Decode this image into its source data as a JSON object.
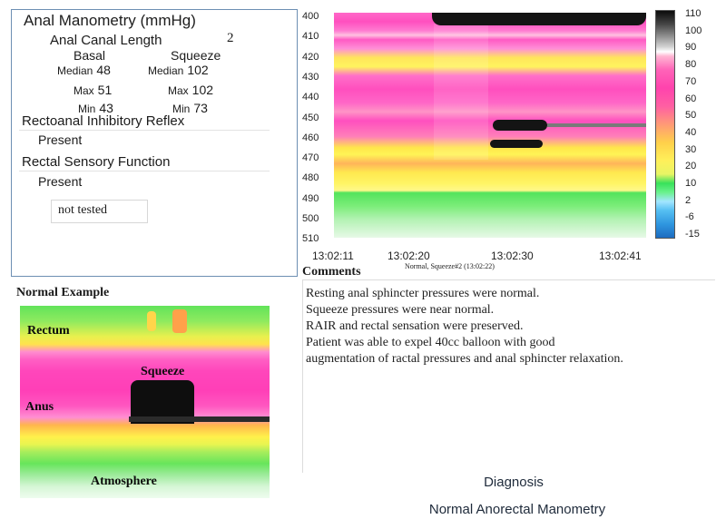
{
  "manometry": {
    "title": "Anal Manometry (mmHg)",
    "canal_length_label": "Anal Canal Length",
    "canal_length_value": "2",
    "basal": {
      "header": "Basal",
      "median_label": "Median",
      "median": "48",
      "max_label": "Max",
      "max": "51",
      "min_label": "Min",
      "min": "43"
    },
    "squeeze": {
      "header": "Squeeze",
      "median_label": "Median",
      "median": "102",
      "max_label": "Max",
      "max": "102",
      "min_label": "Min",
      "min": "73"
    },
    "rair_label": "Rectoanal Inhibitory Reflex",
    "rair_value": "Present",
    "sensory_label": "Rectal Sensory Function",
    "sensory_value": "Present",
    "not_tested": "not tested"
  },
  "chart_data": {
    "type": "heatmap",
    "y_ticks": [
      "400",
      "410",
      "420",
      "430",
      "440",
      "450",
      "460",
      "470",
      "480",
      "490",
      "500",
      "510"
    ],
    "x_ticks": [
      "13:02:11",
      "13:02:20",
      "13:02:30",
      "13:02:41"
    ],
    "caption": "Normal, Squeeze#2 (13:02:22)",
    "colorbar_ticks": [
      "110",
      "100",
      "90",
      "80",
      "70",
      "60",
      "50",
      "40",
      "30",
      "20",
      "10",
      "2",
      "-6",
      "-15"
    ]
  },
  "comments": {
    "title": "Comments",
    "lines": [
      "Resting anal sphincter pressures were normal.",
      "Squeeze pressures were near normal.",
      "RAIR and rectal sensation were preserved.",
      "Patient was able to expel 40cc balloon with good",
      "augmentation of ractal pressures and anal sphincter relaxation."
    ]
  },
  "example": {
    "title": "Normal Example",
    "rectum": "Rectum",
    "squeeze": "Squeeze",
    "anus": "Anus",
    "atmosphere": "Atmosphere"
  },
  "diagnosis": {
    "title": "Diagnosis",
    "value": "Normal Anorectal Manometry"
  }
}
